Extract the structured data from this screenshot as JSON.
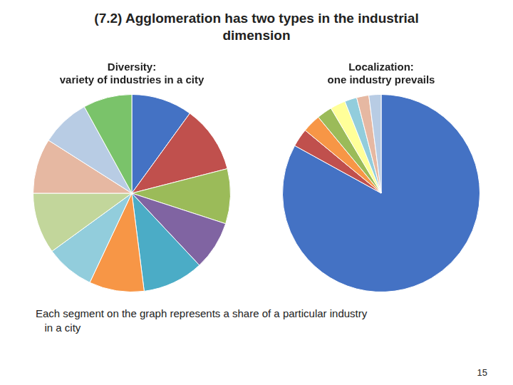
{
  "title": "(7.2) Agglomeration has two types in the industrial\ndimension",
  "annotations": [
    "Each segment on the graph represents a share of a particular industry\n   in a city",
    "15"
  ],
  "chart_data": [
    {
      "type": "pie",
      "title": "Diversity:\nvariety of industries in a city",
      "values": [
        10,
        11,
        9,
        8,
        10,
        9,
        8,
        10,
        9,
        8,
        8
      ],
      "colors": [
        "#4472C4",
        "#C0504D",
        "#9BBB59",
        "#8064A2",
        "#4BACC6",
        "#F79646",
        "#92CDDC",
        "#C2D69B",
        "#E6B8A2",
        "#B8CCE4",
        "#7AC36A"
      ],
      "legend": false,
      "data_labels": false
    },
    {
      "type": "pie",
      "title": "Localization:\none industry prevails",
      "values": [
        83,
        3,
        3,
        2.5,
        2.5,
        2,
        2,
        2
      ],
      "colors": [
        "#4472C4",
        "#C0504D",
        "#F79646",
        "#9BBB59",
        "#FFFF99",
        "#92CDDC",
        "#E6B8A2",
        "#B8CCE4"
      ],
      "legend": false,
      "data_labels": false
    }
  ]
}
